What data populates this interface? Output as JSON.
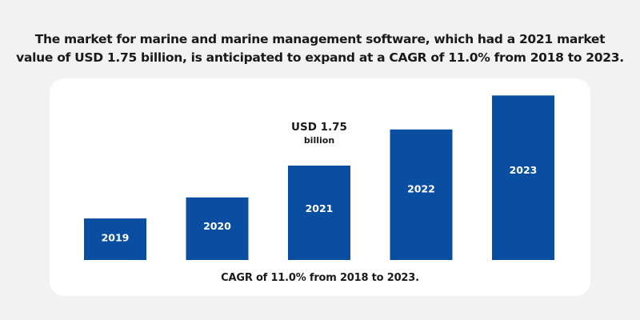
{
  "title_line1": "The market for marine and marine management software, which had a 2021 market",
  "title_line2": "value of USD 1.75 billion, is anticipated to expand at a CAGR of 11.0% from 2018 to 2023.",
  "caption": "CAGR of 11.0% from 2018 to 2023.",
  "chart_data": {
    "type": "bar",
    "categories": [
      "2019",
      "2020",
      "2021",
      "2022",
      "2023"
    ],
    "values": [
      0.77,
      1.16,
      1.75,
      2.42,
      3.05
    ],
    "unit": "USD billion",
    "annotation": {
      "category": "2021",
      "line1": "USD 1.75",
      "line2": "billion"
    },
    "bar_color": "#0a4ea2",
    "grid": false,
    "axes_visible": false,
    "ylim": [
      0,
      3.2
    ]
  }
}
